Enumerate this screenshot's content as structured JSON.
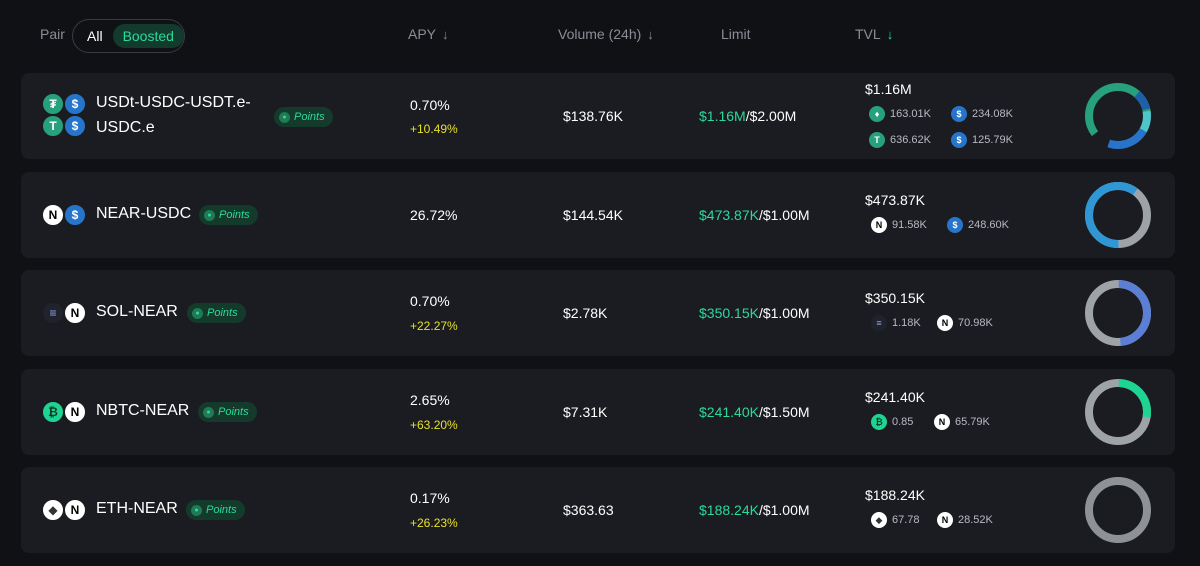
{
  "header": {
    "pair_label": "Pair",
    "toggle_all": "All",
    "toggle_boosted": "Boosted",
    "apy_label": "APY",
    "apy_sort": "↓",
    "volume_label": "Volume (24h)",
    "volume_sort": "↓",
    "limit_label": "Limit",
    "tvl_label": "TVL",
    "tvl_sort": "↓"
  },
  "points_label": "Points",
  "rows": [
    {
      "pair_line1": "USDt-USDC-USDT.e-",
      "pair_line2": "USDC.e",
      "apy": "0.70%",
      "apy_boost": "+10.49%",
      "volume": "$138.76K",
      "limit_used": "$1.16M",
      "limit_max": "/$2.00M",
      "tvl": "$1.16M",
      "tokens": [
        {
          "icon": "usdt-e-icon",
          "amount": "163.01K"
        },
        {
          "icon": "usdc-icon",
          "amount": "234.08K"
        },
        {
          "icon": "usdt-icon",
          "amount": "636.62K"
        },
        {
          "icon": "usdc-e-icon",
          "amount": "125.79K"
        }
      ]
    },
    {
      "pair_line1": "NEAR-USDC",
      "apy": "26.72%",
      "volume": "$144.54K",
      "limit_used": "$473.87K",
      "limit_max": "/$1.00M",
      "tvl": "$473.87K",
      "tokens": [
        {
          "icon": "near-icon",
          "amount": "91.58K"
        },
        {
          "icon": "usdc-icon",
          "amount": "248.60K"
        }
      ]
    },
    {
      "pair_line1": "SOL-NEAR",
      "apy": "0.70%",
      "apy_boost": "+22.27%",
      "volume": "$2.78K",
      "limit_used": "$350.15K",
      "limit_max": "/$1.00M",
      "tvl": "$350.15K",
      "tokens": [
        {
          "icon": "sol-icon",
          "amount": "1.18K"
        },
        {
          "icon": "near-icon",
          "amount": "70.98K"
        }
      ]
    },
    {
      "pair_line1": "NBTC-NEAR",
      "apy": "2.65%",
      "apy_boost": "+63.20%",
      "volume": "$7.31K",
      "limit_used": "$241.40K",
      "limit_max": "/$1.50M",
      "tvl": "$241.40K",
      "tokens": [
        {
          "icon": "nbtc-icon",
          "amount": "0.85"
        },
        {
          "icon": "near-icon",
          "amount": "65.79K"
        }
      ]
    },
    {
      "pair_line1": "ETH-NEAR",
      "apy": "0.17%",
      "apy_boost": "+26.23%",
      "volume": "$363.63",
      "limit_used": "$188.24K",
      "limit_max": "/$1.00M",
      "tvl": "$188.24K",
      "tokens": [
        {
          "icon": "eth-icon",
          "amount": "67.78"
        },
        {
          "icon": "near-icon",
          "amount": "28.52K"
        }
      ]
    }
  ],
  "colors": {
    "background": "#101114",
    "row": "#1b1c21",
    "accent_green": "#2cd99a",
    "boost_yellow": "#e6e02b",
    "usdc_blue": "#2775ca",
    "usdt_green": "#26a17b",
    "sol_purple": "#6a7fd6",
    "donut_track": "#9ea3a8"
  },
  "donut_fills": [
    1.0,
    0.46,
    0.5,
    0.27,
    0.0
  ]
}
